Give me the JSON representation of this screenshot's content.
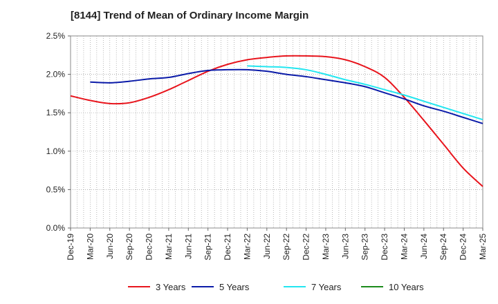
{
  "chart_data": {
    "type": "line",
    "title": "[8144]  Trend of Mean of Ordinary Income Margin",
    "xlabel": "",
    "ylabel": "",
    "ylim": [
      0,
      2.5
    ],
    "y_ticks": [
      "0.0%",
      "0.5%",
      "1.0%",
      "1.5%",
      "2.0%",
      "2.5%"
    ],
    "y_tick_values": [
      0,
      0.5,
      1.0,
      1.5,
      2.0,
      2.5
    ],
    "x_ticks": [
      "Dec-19",
      "Mar-20",
      "Jun-20",
      "Sep-20",
      "Dec-20",
      "Mar-21",
      "Jun-21",
      "Sep-21",
      "Dec-21",
      "Mar-22",
      "Jun-22",
      "Sep-22",
      "Dec-22",
      "Mar-23",
      "Jun-23",
      "Sep-23",
      "Dec-23",
      "Mar-24",
      "Jun-24",
      "Sep-24",
      "Dec-24",
      "Mar-25"
    ],
    "grid": true,
    "legend_position": "bottom",
    "series": [
      {
        "name": "3 Years",
        "color": "#e8141c",
        "start_index": 0,
        "values": [
          1.72,
          1.66,
          1.62,
          1.63,
          1.7,
          1.8,
          1.92,
          2.04,
          2.13,
          2.19,
          2.22,
          2.24,
          2.24,
          2.23,
          2.19,
          2.1,
          1.96,
          1.7,
          1.4,
          1.09,
          0.78,
          0.54
        ]
      },
      {
        "name": "5 Years",
        "color": "#0a1aa8",
        "start_index": 1,
        "values": [
          1.9,
          1.89,
          1.91,
          1.94,
          1.96,
          2.01,
          2.05,
          2.06,
          2.06,
          2.04,
          2.0,
          1.97,
          1.93,
          1.89,
          1.84,
          1.76,
          1.68,
          1.59,
          1.52,
          1.44,
          1.36
        ]
      },
      {
        "name": "7 Years",
        "color": "#22e6f0",
        "start_index": 9,
        "values": [
          2.11,
          2.1,
          2.09,
          2.06,
          2.0,
          1.93,
          1.87,
          1.8,
          1.73,
          1.65,
          1.57,
          1.49,
          1.41
        ]
      },
      {
        "name": "10 Years",
        "color": "#1a8a1a",
        "start_index": 21,
        "values": []
      }
    ]
  }
}
